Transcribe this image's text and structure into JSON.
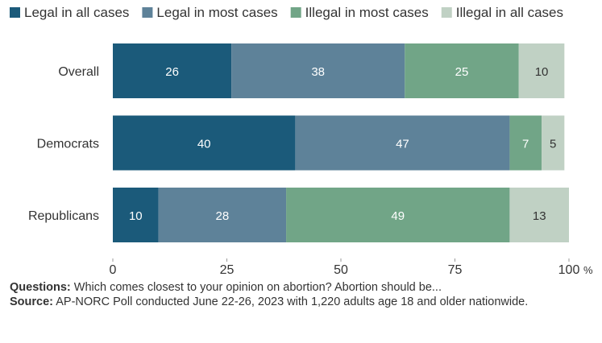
{
  "colors": {
    "legal_all": "#1b5a7a",
    "legal_most": "#5e8299",
    "illegal_most": "#71a587",
    "illegal_all": "#c0d1c4",
    "text": "#333333",
    "axis": "#9a9a9a"
  },
  "chart_data": {
    "type": "bar",
    "orientation": "horizontal",
    "stacked": true,
    "title": "",
    "xlabel": "",
    "ylabel": "",
    "xlim": [
      0,
      100
    ],
    "x_ticks": [
      "0",
      "25",
      "50",
      "75",
      "100"
    ],
    "x_unit": "%",
    "categories": [
      "Overall",
      "Democrats",
      "Republicans"
    ],
    "series": [
      {
        "name": "Legal in all cases",
        "color": "#1b5a7a",
        "label_color": "#ffffff",
        "values": [
          26,
          40,
          10
        ]
      },
      {
        "name": "Legal in most cases",
        "color": "#5e8299",
        "label_color": "#ffffff",
        "values": [
          38,
          47,
          28
        ]
      },
      {
        "name": "Illegal in most cases",
        "color": "#71a587",
        "label_color": "#ffffff",
        "values": [
          25,
          7,
          49
        ]
      },
      {
        "name": "Illegal in all cases",
        "color": "#c0d1c4",
        "label_color": "#333333",
        "values": [
          10,
          5,
          13
        ]
      }
    ],
    "legend_position": "top",
    "grid": false
  },
  "notes": {
    "questions_label": "Questions:",
    "questions_text": " Which comes closest to your opinion on abortion? Abortion should be...",
    "source_label": "Source:",
    "source_text": " AP-NORC Poll conducted June 22-26, 2023 with 1,220 adults age 18 and older nationwide."
  }
}
